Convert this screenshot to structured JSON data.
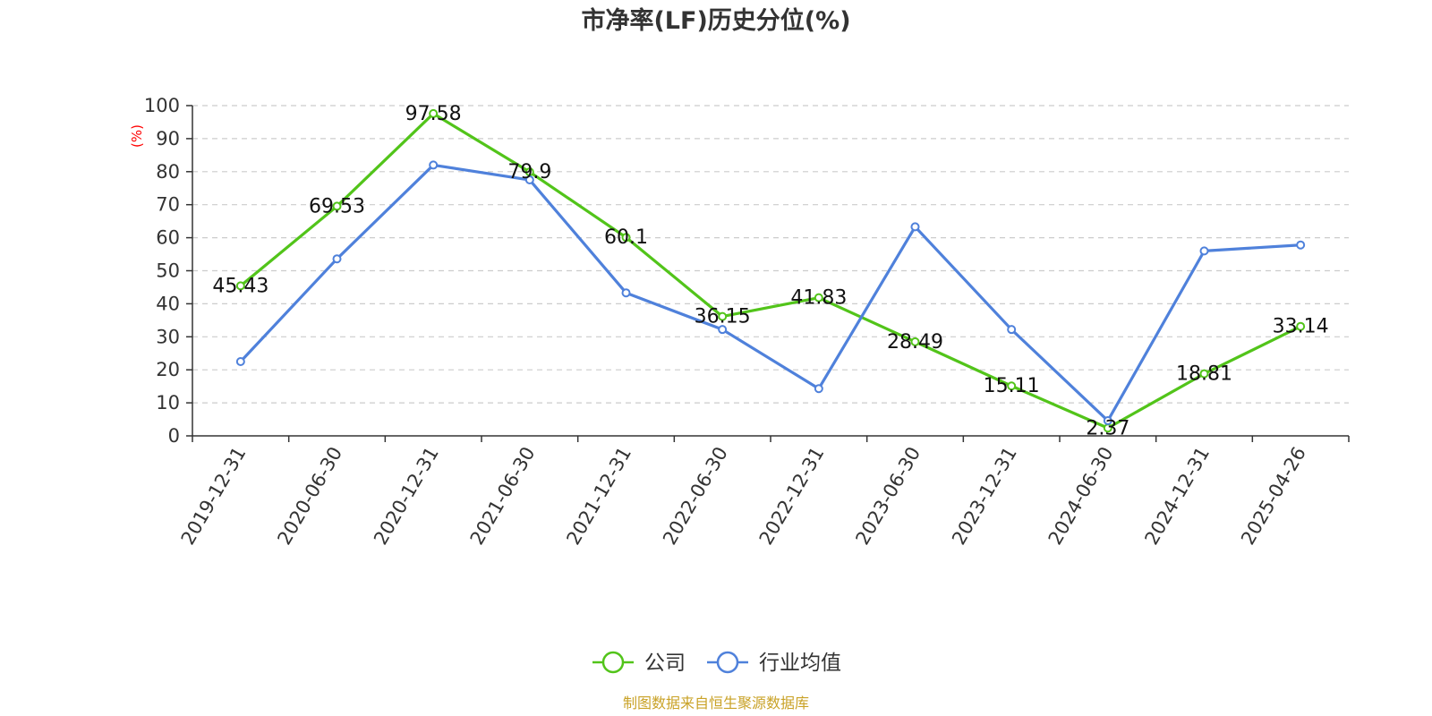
{
  "chart_data": {
    "type": "line",
    "title": "市净率(LF)历史分位(%)",
    "ylabel": "(%)",
    "xlabel": "",
    "ylim": [
      0,
      100
    ],
    "yticks": [
      0,
      10,
      20,
      30,
      40,
      50,
      60,
      70,
      80,
      90,
      100
    ],
    "grid": true,
    "legend_position": "bottom-center",
    "categories": [
      "2019-12-31",
      "2020-06-30",
      "2020-12-31",
      "2021-06-30",
      "2021-12-31",
      "2022-06-30",
      "2022-12-31",
      "2023-06-30",
      "2023-12-31",
      "2024-06-30",
      "2024-12-31",
      "2025-04-26"
    ],
    "series": [
      {
        "name": "公司",
        "color": "#52c41a",
        "values": [
          45.43,
          69.53,
          97.58,
          79.9,
          60.1,
          36.15,
          41.83,
          28.49,
          15.11,
          2.37,
          18.81,
          33.14
        ],
        "labels": [
          "45.43",
          "69.53",
          "97.58",
          "79.9",
          "60.1",
          "36.15",
          "41.83",
          "28.49",
          "15.11",
          "2.37",
          "18.81",
          "33.14"
        ]
      },
      {
        "name": "行业均值",
        "color": "#4f81db",
        "values": [
          22.5,
          53.6,
          82.0,
          77.5,
          43.3,
          32.2,
          14.3,
          63.3,
          32.2,
          4.6,
          56.0,
          57.8
        ]
      }
    ],
    "source": "制图数据来自恒生聚源数据库"
  }
}
